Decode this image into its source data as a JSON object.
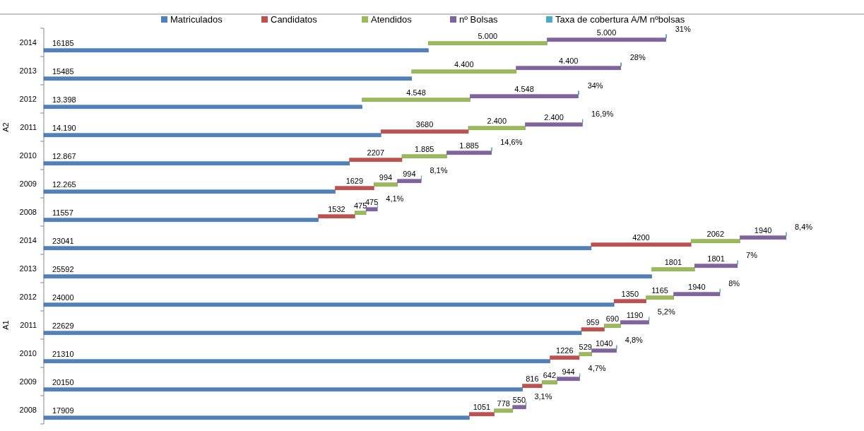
{
  "chart_data": {
    "type": "bar",
    "orientation": "horizontal",
    "stacked": true,
    "legend": "top",
    "categories": [
      "2014",
      "2013",
      "2012",
      "2011",
      "2010",
      "2009",
      "2008",
      "2014",
      "2013",
      "2012",
      "2011",
      "2010",
      "2009",
      "2008"
    ],
    "annotations": [
      "A2",
      "A1"
    ],
    "series": [
      {
        "name": "Matriculados",
        "color": "#4f81bd",
        "values": [
          16185,
          15485,
          13398,
          14190,
          12867,
          12265,
          11557,
          23041,
          25592,
          24000,
          22629,
          21310,
          20150,
          17909
        ],
        "value_labels": [
          "16185",
          "15485",
          "13.398",
          "14.190",
          "12.867",
          "12.265",
          "11557",
          "23041",
          "25592",
          "24000",
          "22629",
          "21310",
          "20150",
          "17909"
        ]
      },
      {
        "name": "Candidatos",
        "color": "#c0504d",
        "values": [
          null,
          null,
          null,
          3680,
          2207,
          1629,
          1532,
          4200,
          null,
          1350,
          959,
          1226,
          816,
          1051
        ],
        "value_labels": [
          null,
          null,
          null,
          "3680",
          "2207",
          "1629",
          "1532",
          "4200",
          null,
          "1350",
          "959",
          "1226",
          "816",
          "1051"
        ]
      },
      {
        "name": "Atendidos",
        "color": "#9bbb59",
        "values": [
          5000,
          4400,
          4548,
          2400,
          1885,
          994,
          475,
          2062,
          1801,
          1165,
          690,
          529,
          642,
          778
        ],
        "value_labels": [
          "5.000",
          "4.400",
          "4.548",
          "2.400",
          "1.885",
          "994",
          "475",
          "2062",
          "1801",
          "1165",
          "690",
          "529",
          "642",
          "778"
        ]
      },
      {
        "name": "nº Bolsas",
        "color": "#8064a2",
        "values": [
          5000,
          4400,
          4548,
          2400,
          1885,
          994,
          475,
          1940,
          1801,
          1940,
          1190,
          1040,
          944,
          550
        ],
        "value_labels": [
          "5.000",
          "4.400",
          "4.548",
          "2.400",
          "1.885",
          "994",
          "475",
          "1940",
          "1801",
          "1940",
          "1190",
          "1040",
          "944",
          "550"
        ]
      },
      {
        "name": "Taxa de cobertura A/M nºbolsas",
        "color": "#4bacc6",
        "values": [
          31,
          28,
          34,
          16.9,
          14.6,
          8.1,
          4.1,
          8.4,
          7,
          8,
          5.2,
          4.8,
          4.7,
          3.1
        ],
        "value_labels": [
          "31%",
          "28%",
          "34%",
          "16,9%",
          "14,6%",
          "8,1%",
          "4,1%",
          "8,4%",
          "7%",
          "8%",
          "5,2%",
          "4,8%",
          "4,7%",
          "3,1%"
        ]
      }
    ]
  }
}
